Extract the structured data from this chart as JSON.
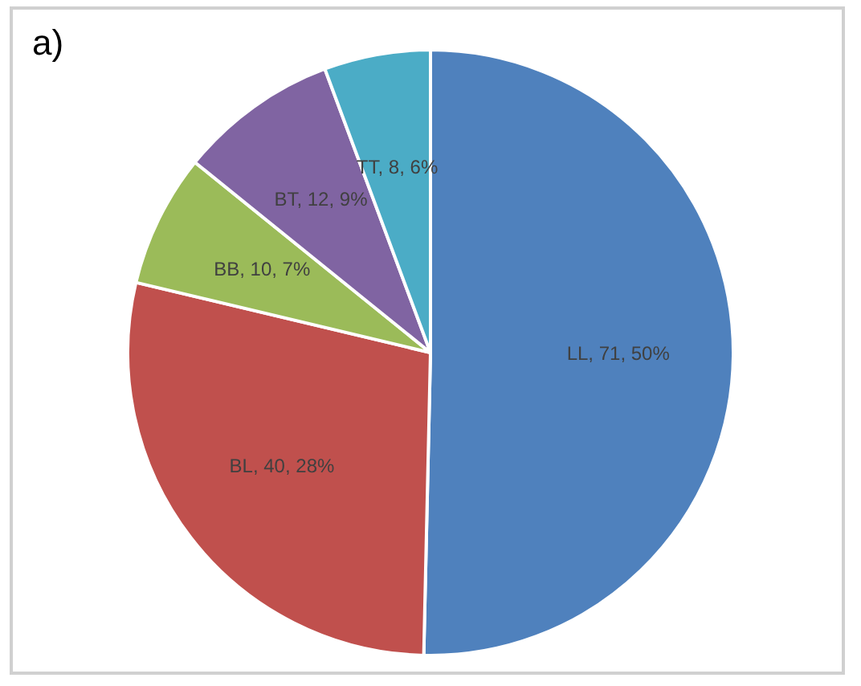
{
  "chart_data": {
    "type": "pie",
    "title": "a)",
    "categories": [
      "LL, 71, 50%",
      "BL, 40, 28%",
      "BB, 10, 7%",
      "BT, 12, 9%",
      "TT, 8, 6%"
    ],
    "values": [
      71,
      40,
      10,
      12,
      8
    ],
    "colors": [
      "#4f81bd",
      "#c0504d",
      "#9bbb59",
      "#8064a2",
      "#4bacc6"
    ],
    "legend": false
  }
}
